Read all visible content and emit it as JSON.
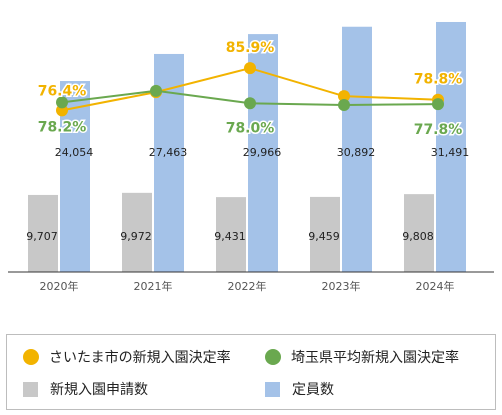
{
  "chart_data": {
    "type": "bar",
    "categories": [
      "2020年",
      "2021年",
      "2022年",
      "2023年",
      "2024年"
    ],
    "series": [
      {
        "name": "新規入園申請数",
        "type": "bar",
        "values": [
          9707,
          9972,
          9431,
          9459,
          9808
        ],
        "labels": [
          "9,707",
          "9,972",
          "9,431",
          "9,459",
          "9,808"
        ],
        "color": "#c8c8c8"
      },
      {
        "name": "定員数",
        "type": "bar",
        "values": [
          24054,
          27463,
          29966,
          30892,
          31491
        ],
        "labels": [
          "24,054",
          "27,463",
          "29,966",
          "30,892",
          "31,491"
        ],
        "color": "#a4c2e8"
      },
      {
        "name": "さいたま市の新規入園決定率",
        "type": "line",
        "values": [
          76.4,
          80.5,
          85.9,
          79.6,
          78.8
        ],
        "labels": [
          "76.4%",
          "",
          "85.9%",
          "",
          "78.8%"
        ],
        "color": "#f2b300"
      },
      {
        "name": "埼玉県平均新規入園決定率",
        "type": "line",
        "values": [
          78.2,
          80.8,
          78.0,
          77.6,
          77.8
        ],
        "labels": [
          "78.2%",
          "",
          "78.0%",
          "",
          "77.8%"
        ],
        "color": "#6aa84f"
      }
    ],
    "bar_axis_max": 33000,
    "rate_axis_range": [
      40,
      99
    ]
  },
  "legend": {
    "items": [
      {
        "label": "さいたま市の新規入園決定率",
        "icon": "circle",
        "color": "#f2b300"
      },
      {
        "label": "埼玉県平均新規入園決定率",
        "icon": "circle",
        "color": "#6aa84f"
      },
      {
        "label": "新規入園申請数",
        "icon": "square",
        "color": "#c8c8c8"
      },
      {
        "label": "定員数",
        "icon": "square",
        "color": "#a4c2e8"
      }
    ]
  }
}
